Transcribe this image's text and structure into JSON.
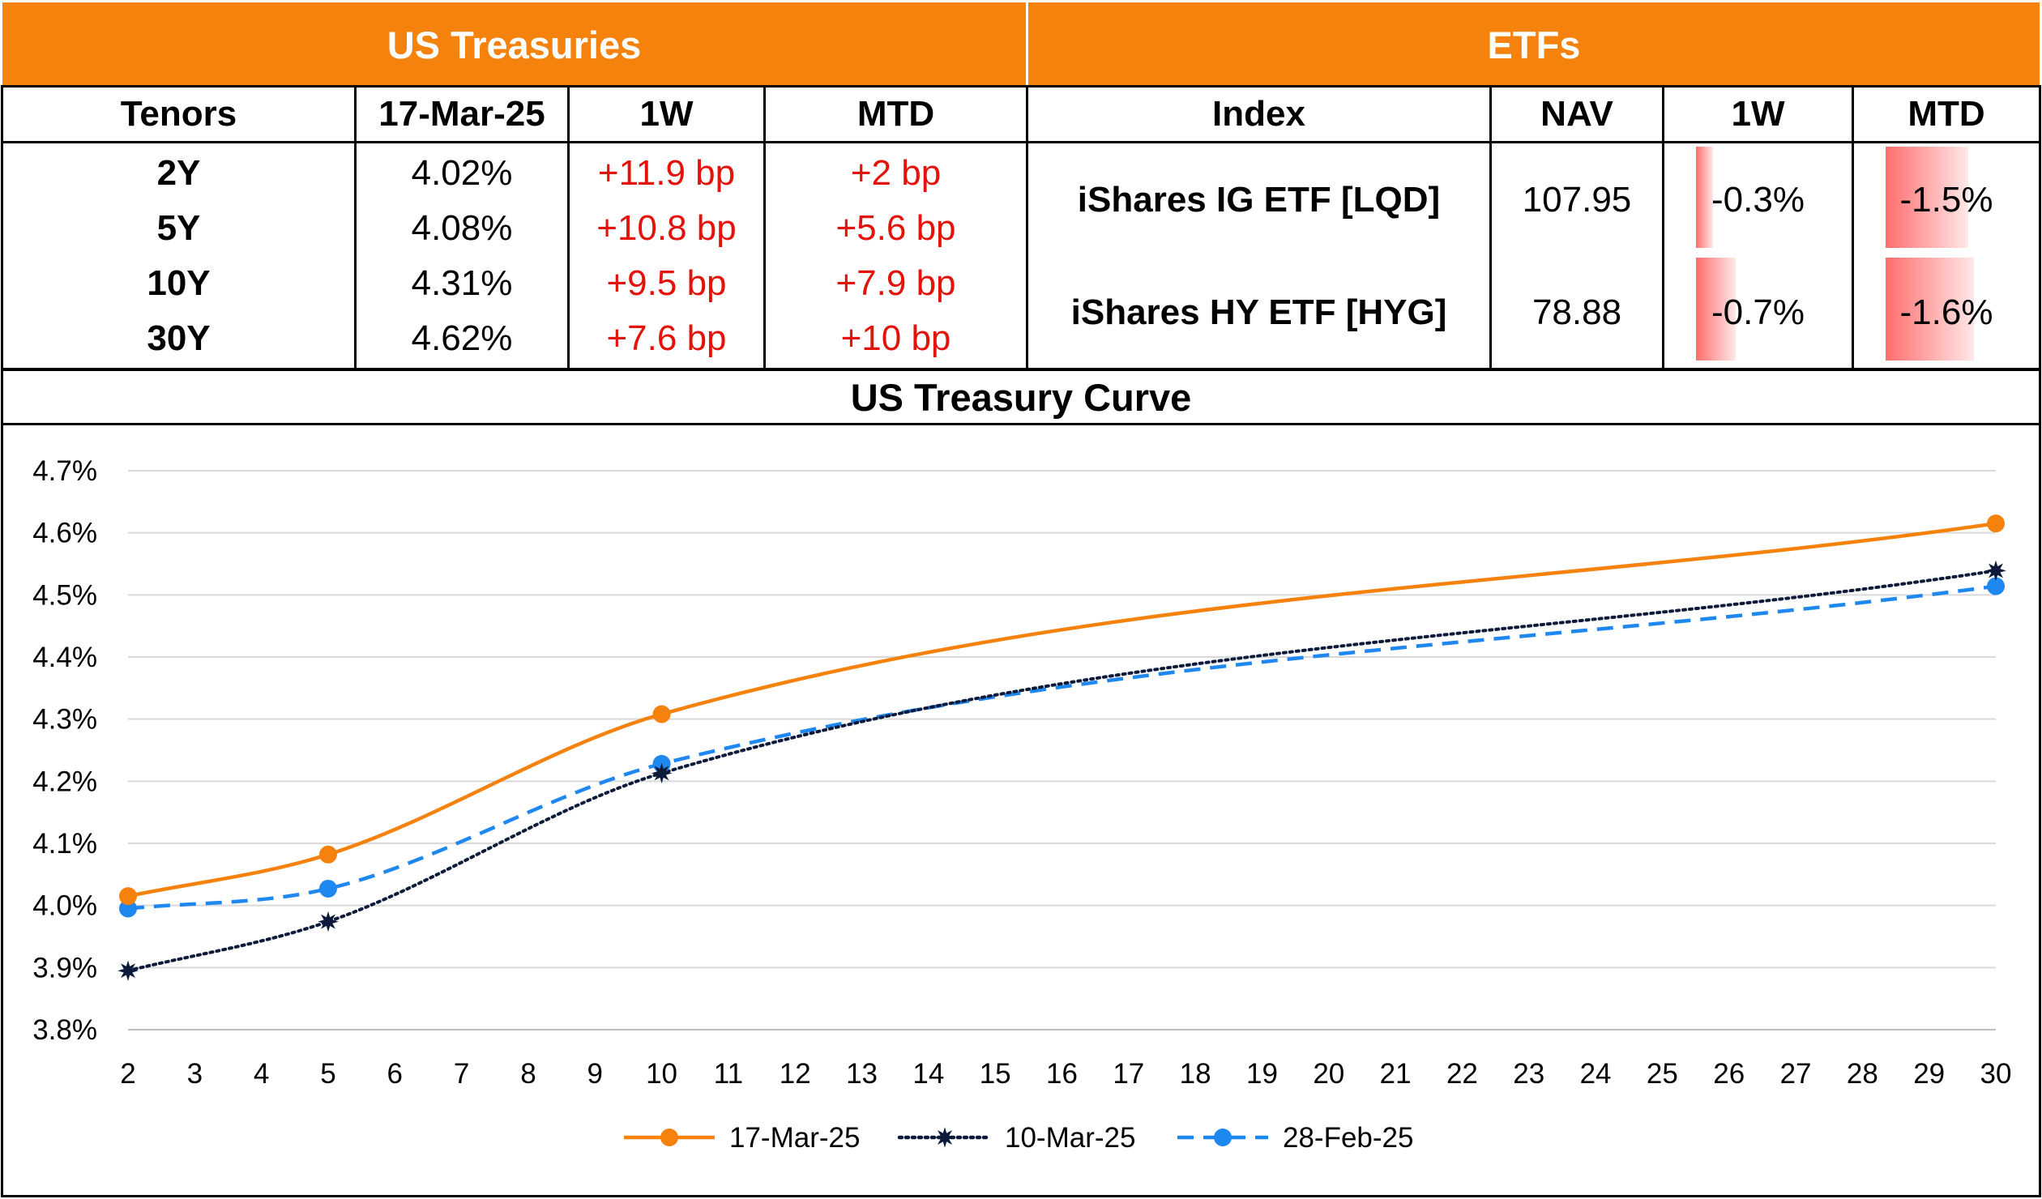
{
  "treasuries": {
    "title": "US Treasuries",
    "columns": [
      "Tenors",
      "17-Mar-25",
      "1W",
      "MTD"
    ],
    "rows": [
      {
        "tenor": "2Y",
        "yield": "4.02%",
        "w1": "+11.9 bp",
        "mtd": "+2 bp"
      },
      {
        "tenor": "5Y",
        "yield": "4.08%",
        "w1": "+10.8 bp",
        "mtd": "+5.6 bp"
      },
      {
        "tenor": "10Y",
        "yield": "4.31%",
        "w1": "+9.5 bp",
        "mtd": "+7.9 bp"
      },
      {
        "tenor": "30Y",
        "yield": "4.62%",
        "w1": "+7.6 bp",
        "mtd": "+10 bp"
      }
    ]
  },
  "etfs": {
    "title": "ETFs",
    "columns": [
      "Index",
      "NAV",
      "1W",
      "MTD"
    ],
    "rows": [
      {
        "index": "iShares IG ETF [LQD]",
        "nav": "107.95",
        "w1": "-0.3%",
        "mtd": "-1.5%",
        "w1_value": -0.3,
        "mtd_value": -1.5
      },
      {
        "index": "iShares HY ETF [HYG]",
        "nav": "78.88",
        "w1": "-0.7%",
        "mtd": "-1.6%",
        "w1_value": -0.7,
        "mtd_value": -1.6
      }
    ],
    "bar_color": "#ff6d6d"
  },
  "chart_title": "US Treasury Curve",
  "chart_data": {
    "type": "line",
    "title": "US Treasury Curve",
    "x": [
      2,
      5,
      10,
      30
    ],
    "xlim": [
      2,
      30
    ],
    "xticks": [
      2,
      3,
      4,
      5,
      6,
      7,
      8,
      9,
      10,
      11,
      12,
      13,
      14,
      15,
      16,
      17,
      18,
      19,
      20,
      21,
      22,
      23,
      24,
      25,
      26,
      27,
      28,
      29,
      30
    ],
    "ylim": [
      3.8,
      4.7
    ],
    "yticks": [
      "3.8%",
      "3.9%",
      "4.0%",
      "4.1%",
      "4.2%",
      "4.3%",
      "4.4%",
      "4.5%",
      "4.6%",
      "4.7%"
    ],
    "grid": true,
    "legend_position": "bottom",
    "series": [
      {
        "name": "17-Mar-25",
        "values": [
          4.015,
          4.082,
          4.308,
          4.615
        ],
        "color": "#f5820d",
        "line": "solid",
        "marker": "circle"
      },
      {
        "name": "10-Mar-25",
        "values": [
          3.895,
          3.974,
          4.213,
          4.539
        ],
        "color": "#0d1a3a",
        "line": "dotted",
        "marker": "star"
      },
      {
        "name": "28-Feb-25",
        "values": [
          3.995,
          4.027,
          4.228,
          4.514
        ],
        "color": "#1e88f0",
        "line": "dashed",
        "marker": "circle"
      }
    ]
  }
}
